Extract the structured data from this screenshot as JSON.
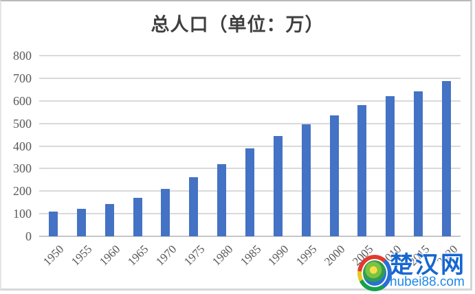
{
  "chart_data": {
    "type": "bar",
    "title": "总人口（单位：万）",
    "categories": [
      "1950",
      "1955",
      "1960",
      "1965",
      "1970",
      "1975",
      "1980",
      "1985",
      "1990",
      "1995",
      "2000",
      "2005",
      "2010",
      "2015",
      "2020"
    ],
    "values": [
      110,
      122,
      143,
      170,
      211,
      261,
      320,
      388,
      443,
      495,
      535,
      580,
      620,
      642,
      686
    ],
    "xlabel": "",
    "ylabel": "",
    "ylim": [
      0,
      800
    ],
    "yticks": [
      0,
      100,
      200,
      300,
      400,
      500,
      600,
      700,
      800
    ],
    "grid": "horizontal",
    "legend": "none",
    "x_label_rotation": -45,
    "colors": {
      "bar": "#4472C4",
      "gridline": "#D9D9D9",
      "axis_line": "#C6C6C6",
      "tick_label": "#595959",
      "title": "#3F3F3F"
    }
  },
  "watermark": {
    "site_name": "楚汉网",
    "site_url": "hubei88.com",
    "logo_icon": "globe-swirl-logo",
    "colors": {
      "site_name": "#1666D2",
      "site_url": "#1E88E5"
    }
  }
}
